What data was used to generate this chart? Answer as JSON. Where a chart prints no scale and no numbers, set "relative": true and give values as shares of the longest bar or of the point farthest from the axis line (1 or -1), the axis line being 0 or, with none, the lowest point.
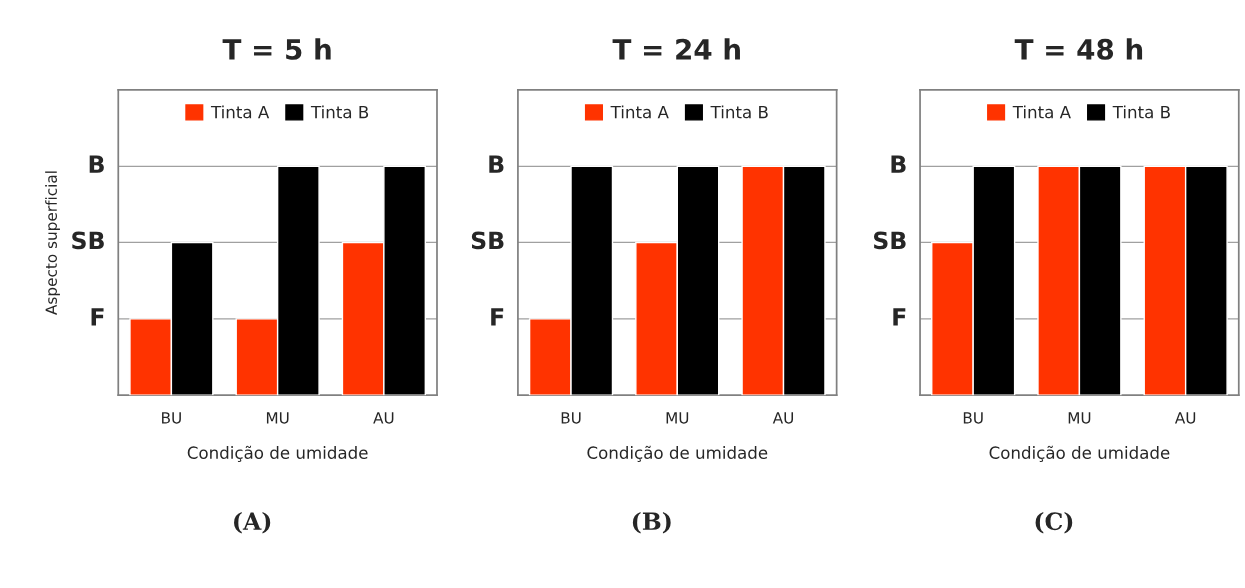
{
  "chart_data": [
    {
      "type": "bar",
      "title": "T = 5 h",
      "xlabel": "Condição de umidade",
      "ylabel": "Aspecto superficial",
      "categories": [
        "BU",
        "MU",
        "AU"
      ],
      "relative": true,
      "series": [
        {
          "name": "Tinta A",
          "color": "#ff3300",
          "values": [
            0.333,
            0.333,
            0.667
          ]
        },
        {
          "name": "Tinta B",
          "color": "#000000",
          "values": [
            0.667,
            1,
            1
          ]
        }
      ],
      "ref_lines": [
        {
          "axis": "y",
          "value": 0.333,
          "label": "F",
          "color": "#a0a0a0"
        },
        {
          "axis": "y",
          "value": 0.667,
          "label": "SB",
          "color": "#a0a0a0"
        },
        {
          "axis": "y",
          "value": 1,
          "label": "B",
          "color": "#a0a0a0"
        }
      ],
      "legend": "top",
      "annotations": [
        "(A)"
      ]
    },
    {
      "type": "bar",
      "title": "T = 24 h",
      "xlabel": "Condição de umidade",
      "categories": [
        "BU",
        "MU",
        "AU"
      ],
      "relative": true,
      "series": [
        {
          "name": "Tinta A",
          "color": "#ff3300",
          "values": [
            0.333,
            0.667,
            1
          ]
        },
        {
          "name": "Tinta B",
          "color": "#000000",
          "values": [
            1,
            1,
            1
          ]
        }
      ],
      "ref_lines": [
        {
          "axis": "y",
          "value": 0.333,
          "label": "F",
          "color": "#a0a0a0"
        },
        {
          "axis": "y",
          "value": 0.667,
          "label": "SB",
          "color": "#a0a0a0"
        },
        {
          "axis": "y",
          "value": 1,
          "label": "B",
          "color": "#a0a0a0"
        }
      ],
      "legend": "top",
      "annotations": [
        "(B)"
      ]
    },
    {
      "type": "bar",
      "title": "T = 48 h",
      "xlabel": "Condição de umidade",
      "categories": [
        "BU",
        "MU",
        "AU"
      ],
      "relative": true,
      "series": [
        {
          "name": "Tinta A",
          "color": "#ff3300",
          "values": [
            0.667,
            1,
            1
          ]
        },
        {
          "name": "Tinta B",
          "color": "#000000",
          "values": [
            1,
            1,
            1
          ]
        }
      ],
      "ref_lines": [
        {
          "axis": "y",
          "value": 0.333,
          "label": "F",
          "color": "#a0a0a0"
        },
        {
          "axis": "y",
          "value": 0.667,
          "label": "SB",
          "color": "#a0a0a0"
        },
        {
          "axis": "y",
          "value": 1,
          "label": "B",
          "color": "#a0a0a0"
        }
      ],
      "legend": "top",
      "annotations": [
        "(C)"
      ]
    }
  ]
}
